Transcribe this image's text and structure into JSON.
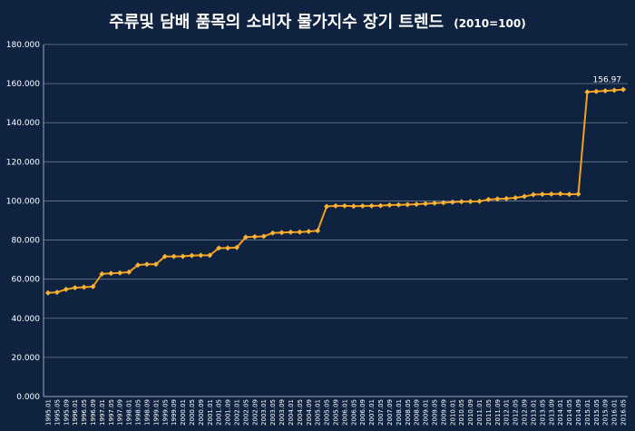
{
  "chart_data": {
    "type": "line",
    "title": "주류및 담배 품목의 소비자 물가지수 장기 트렌드",
    "subtitle": "(2010=100)",
    "ylim": [
      0,
      180
    ],
    "yticks": [
      "0.000",
      "20.000",
      "40.000",
      "60.000",
      "80.000",
      "100.000",
      "120.000",
      "140.000",
      "160.000",
      "180.000"
    ],
    "grid": true,
    "legend": "none",
    "colors": {
      "line": "#f5a01a",
      "marker": "#f7b33a",
      "background": "#0f2340"
    },
    "x_labels": [
      "1995.01",
      "1995.05",
      "1995.09",
      "1996.01",
      "1996.05",
      "1996.09",
      "1997.01",
      "1997.05",
      "1997.09",
      "1998.01",
      "1998.05",
      "1998.09",
      "1999.01",
      "1999.05",
      "1999.09",
      "2000.01",
      "2000.05",
      "2000.09",
      "2001.01",
      "2001.05",
      "2001.09",
      "2002.01",
      "2002.05",
      "2002.09",
      "2003.01",
      "2003.05",
      "2003.09",
      "2004.01",
      "2004.05",
      "2004.09",
      "2005.01",
      "2005.05",
      "2005.09",
      "2006.01",
      "2006.05",
      "2006.09",
      "2007.01",
      "2007.05",
      "2007.09",
      "2008.01",
      "2008.05",
      "2008.09",
      "2009.01",
      "2009.05",
      "2009.09",
      "2010.01",
      "2010.05",
      "2010.09",
      "2011.01",
      "2011.05",
      "2011.09",
      "2012.01",
      "2012.05",
      "2012.09",
      "2013.01",
      "2013.05",
      "2013.09",
      "2014.01",
      "2014.05",
      "2014.09",
      "2015.01",
      "2015.05",
      "2015.09",
      "2016.01",
      "2016.05"
    ],
    "series": [
      {
        "values": [
          53.0,
          53.3,
          54.8,
          55.6,
          55.9,
          56.2,
          62.7,
          63.0,
          63.2,
          63.6,
          67.2,
          67.6,
          67.6,
          71.6,
          71.6,
          71.7,
          72.1,
          72.2,
          72.2,
          75.9,
          75.9,
          76.2,
          81.5,
          81.7,
          81.9,
          83.6,
          83.8,
          84.0,
          84.1,
          84.4,
          84.8,
          97.2,
          97.5,
          97.5,
          97.3,
          97.4,
          97.5,
          97.6,
          97.9,
          98.0,
          98.1,
          98.3,
          98.6,
          98.9,
          99.1,
          99.4,
          99.6,
          99.7,
          99.8,
          100.7,
          101.0,
          101.2,
          101.6,
          102.3,
          103.2,
          103.4,
          103.5,
          103.6,
          103.4,
          103.5,
          155.7,
          156.0,
          156.3,
          156.6,
          156.97
        ]
      }
    ],
    "data_label": "156.97"
  }
}
